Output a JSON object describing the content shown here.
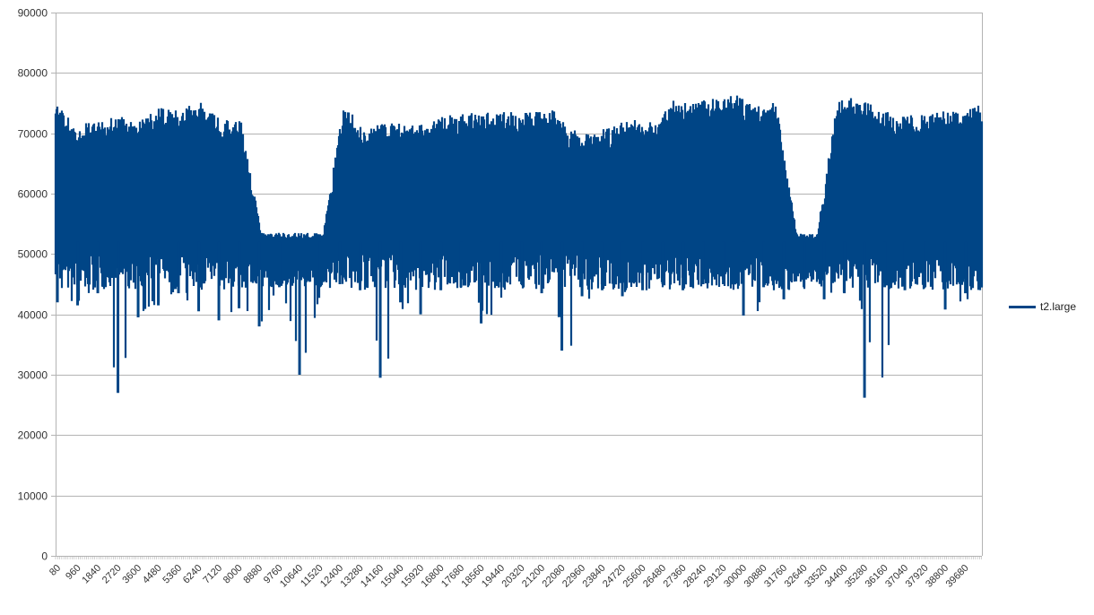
{
  "chart_data": {
    "type": "line",
    "title": "",
    "xlabel": "",
    "ylabel": "",
    "ylim": [
      0,
      90000
    ],
    "yticks": [
      0,
      10000,
      20000,
      30000,
      40000,
      50000,
      60000,
      70000,
      80000,
      90000
    ],
    "xticks": [
      80,
      960,
      1840,
      2720,
      3600,
      4480,
      5360,
      6240,
      7120,
      8000,
      8880,
      9760,
      10640,
      11520,
      12400,
      13280,
      14160,
      15040,
      15920,
      16800,
      17680,
      18560,
      19440,
      20320,
      21200,
      22080,
      22960,
      23840,
      24720,
      25600,
      26480,
      27360,
      28240,
      29120,
      30000,
      30880,
      31760,
      32640,
      33520,
      34400,
      35280,
      36160,
      37040,
      37920,
      38800,
      39680
    ],
    "xlim": [
      0,
      40400
    ],
    "grid": "horizontal",
    "legend_position": "right",
    "series": [
      {
        "name": "t2.large",
        "color": "#004586",
        "note": "Dense oscillating series; values given as per-bin envelope (max/min) at each x tick",
        "x": [
          80,
          960,
          1840,
          2720,
          3600,
          4480,
          5360,
          6240,
          7120,
          8000,
          8880,
          9760,
          10640,
          11520,
          12400,
          13280,
          14160,
          15040,
          15920,
          16800,
          17680,
          18560,
          19440,
          20320,
          21200,
          22080,
          22960,
          23840,
          24720,
          25600,
          26480,
          27360,
          28240,
          29120,
          30000,
          30880,
          31760,
          32640,
          33520,
          34400,
          35280,
          36160,
          37040,
          37920,
          38800,
          39680
        ],
        "max": [
          75000,
          71500,
          72000,
          73000,
          72000,
          74500,
          74000,
          75200,
          72500,
          72500,
          53500,
          53500,
          53500,
          53500,
          75000,
          70500,
          72000,
          71500,
          72000,
          73000,
          73500,
          73500,
          73500,
          73500,
          74500,
          70500,
          70500,
          71000,
          73000,
          72000,
          75500,
          75500,
          76000,
          76500,
          74500,
          75500,
          53500,
          53500,
          76000,
          76000,
          74000,
          73000,
          73000,
          74000,
          73500,
          75000
        ],
        "min": [
          42000,
          41500,
          43500,
          27000,
          39500,
          41500,
          43500,
          40500,
          39000,
          41000,
          38000,
          44500,
          30000,
          44500,
          45000,
          44000,
          29500,
          42000,
          40000,
          44000,
          44500,
          38500,
          44500,
          45000,
          43500,
          34000,
          43000,
          44000,
          43000,
          44000,
          45000,
          44000,
          45000,
          45000,
          39800,
          44500,
          42500,
          44500,
          42500,
          43500,
          26200,
          44500,
          44000,
          44500,
          40800,
          43500
        ],
        "typical_high": 71000,
        "typical_low": 48000
      }
    ]
  }
}
